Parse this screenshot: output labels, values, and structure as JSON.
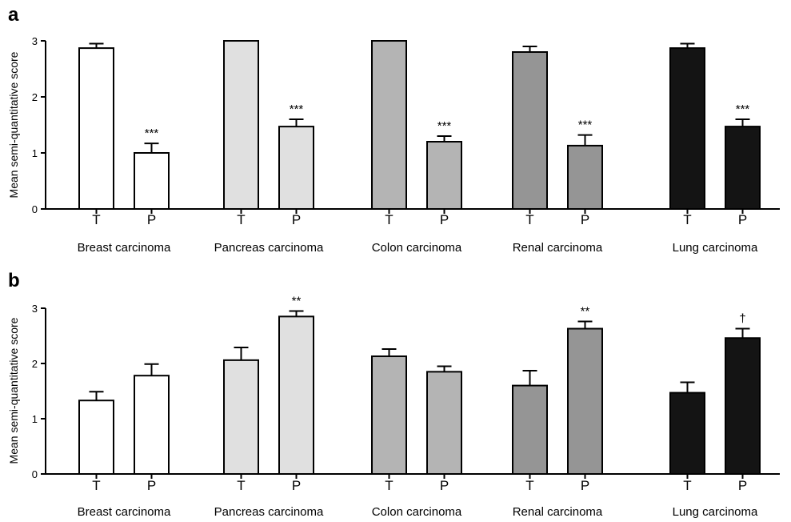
{
  "chart_data": [
    {
      "type": "bar",
      "panel": "a",
      "ylabel": "Mean semi-quantitative score",
      "ylim": [
        0,
        3
      ],
      "yticks": [
        "0",
        "1",
        "2",
        "3"
      ],
      "groups": [
        {
          "name": "Breast carcinoma",
          "color": "#ffffff",
          "bars": [
            {
              "label": "T",
              "value": 2.87,
              "error": 0.08,
              "sig": ""
            },
            {
              "label": "P",
              "value": 1.0,
              "error": 0.17,
              "sig": "***"
            }
          ]
        },
        {
          "name": "Pancreas carcinoma",
          "color": "#e0e0e0",
          "bars": [
            {
              "label": "T",
              "value": 3.0,
              "error": 0.0,
              "sig": ""
            },
            {
              "label": "P",
              "value": 1.47,
              "error": 0.13,
              "sig": "***"
            }
          ]
        },
        {
          "name": "Colon carcinoma",
          "color": "#b4b4b4",
          "bars": [
            {
              "label": "T",
              "value": 3.0,
              "error": 0.0,
              "sig": ""
            },
            {
              "label": "P",
              "value": 1.2,
              "error": 0.1,
              "sig": "***"
            }
          ]
        },
        {
          "name": "Renal carcinoma",
          "color": "#959595",
          "bars": [
            {
              "label": "T",
              "value": 2.8,
              "error": 0.1,
              "sig": ""
            },
            {
              "label": "P",
              "value": 1.13,
              "error": 0.19,
              "sig": "***"
            }
          ]
        },
        {
          "name": "Lung carcinoma",
          "color": "#141414",
          "bars": [
            {
              "label": "T",
              "value": 2.87,
              "error": 0.08,
              "sig": ""
            },
            {
              "label": "P",
              "value": 1.47,
              "error": 0.13,
              "sig": "***"
            }
          ]
        }
      ]
    },
    {
      "type": "bar",
      "panel": "b",
      "ylabel": "Mean semi-quantitative score",
      "ylim": [
        0,
        3
      ],
      "yticks": [
        "0",
        "1",
        "2",
        "3"
      ],
      "groups": [
        {
          "name": "Breast carcinoma",
          "color": "#ffffff",
          "bars": [
            {
              "label": "T",
              "value": 1.33,
              "error": 0.16,
              "sig": ""
            },
            {
              "label": "P",
              "value": 1.78,
              "error": 0.21,
              "sig": ""
            }
          ]
        },
        {
          "name": "Pancreas carcinoma",
          "color": "#e0e0e0",
          "bars": [
            {
              "label": "T",
              "value": 2.06,
              "error": 0.23,
              "sig": ""
            },
            {
              "label": "P",
              "value": 2.85,
              "error": 0.1,
              "sig": "**"
            }
          ]
        },
        {
          "name": "Colon carcinoma",
          "color": "#b4b4b4",
          "bars": [
            {
              "label": "T",
              "value": 2.13,
              "error": 0.13,
              "sig": ""
            },
            {
              "label": "P",
              "value": 1.85,
              "error": 0.1,
              "sig": ""
            }
          ]
        },
        {
          "name": "Renal carcinoma",
          "color": "#959595",
          "bars": [
            {
              "label": "T",
              "value": 1.6,
              "error": 0.27,
              "sig": ""
            },
            {
              "label": "P",
              "value": 2.63,
              "error": 0.13,
              "sig": "**"
            }
          ]
        },
        {
          "name": "Lung carcinoma",
          "color": "#141414",
          "bars": [
            {
              "label": "T",
              "value": 1.47,
              "error": 0.19,
              "sig": ""
            },
            {
              "label": "P",
              "value": 2.46,
              "error": 0.17,
              "sig": "†"
            }
          ]
        }
      ]
    }
  ]
}
